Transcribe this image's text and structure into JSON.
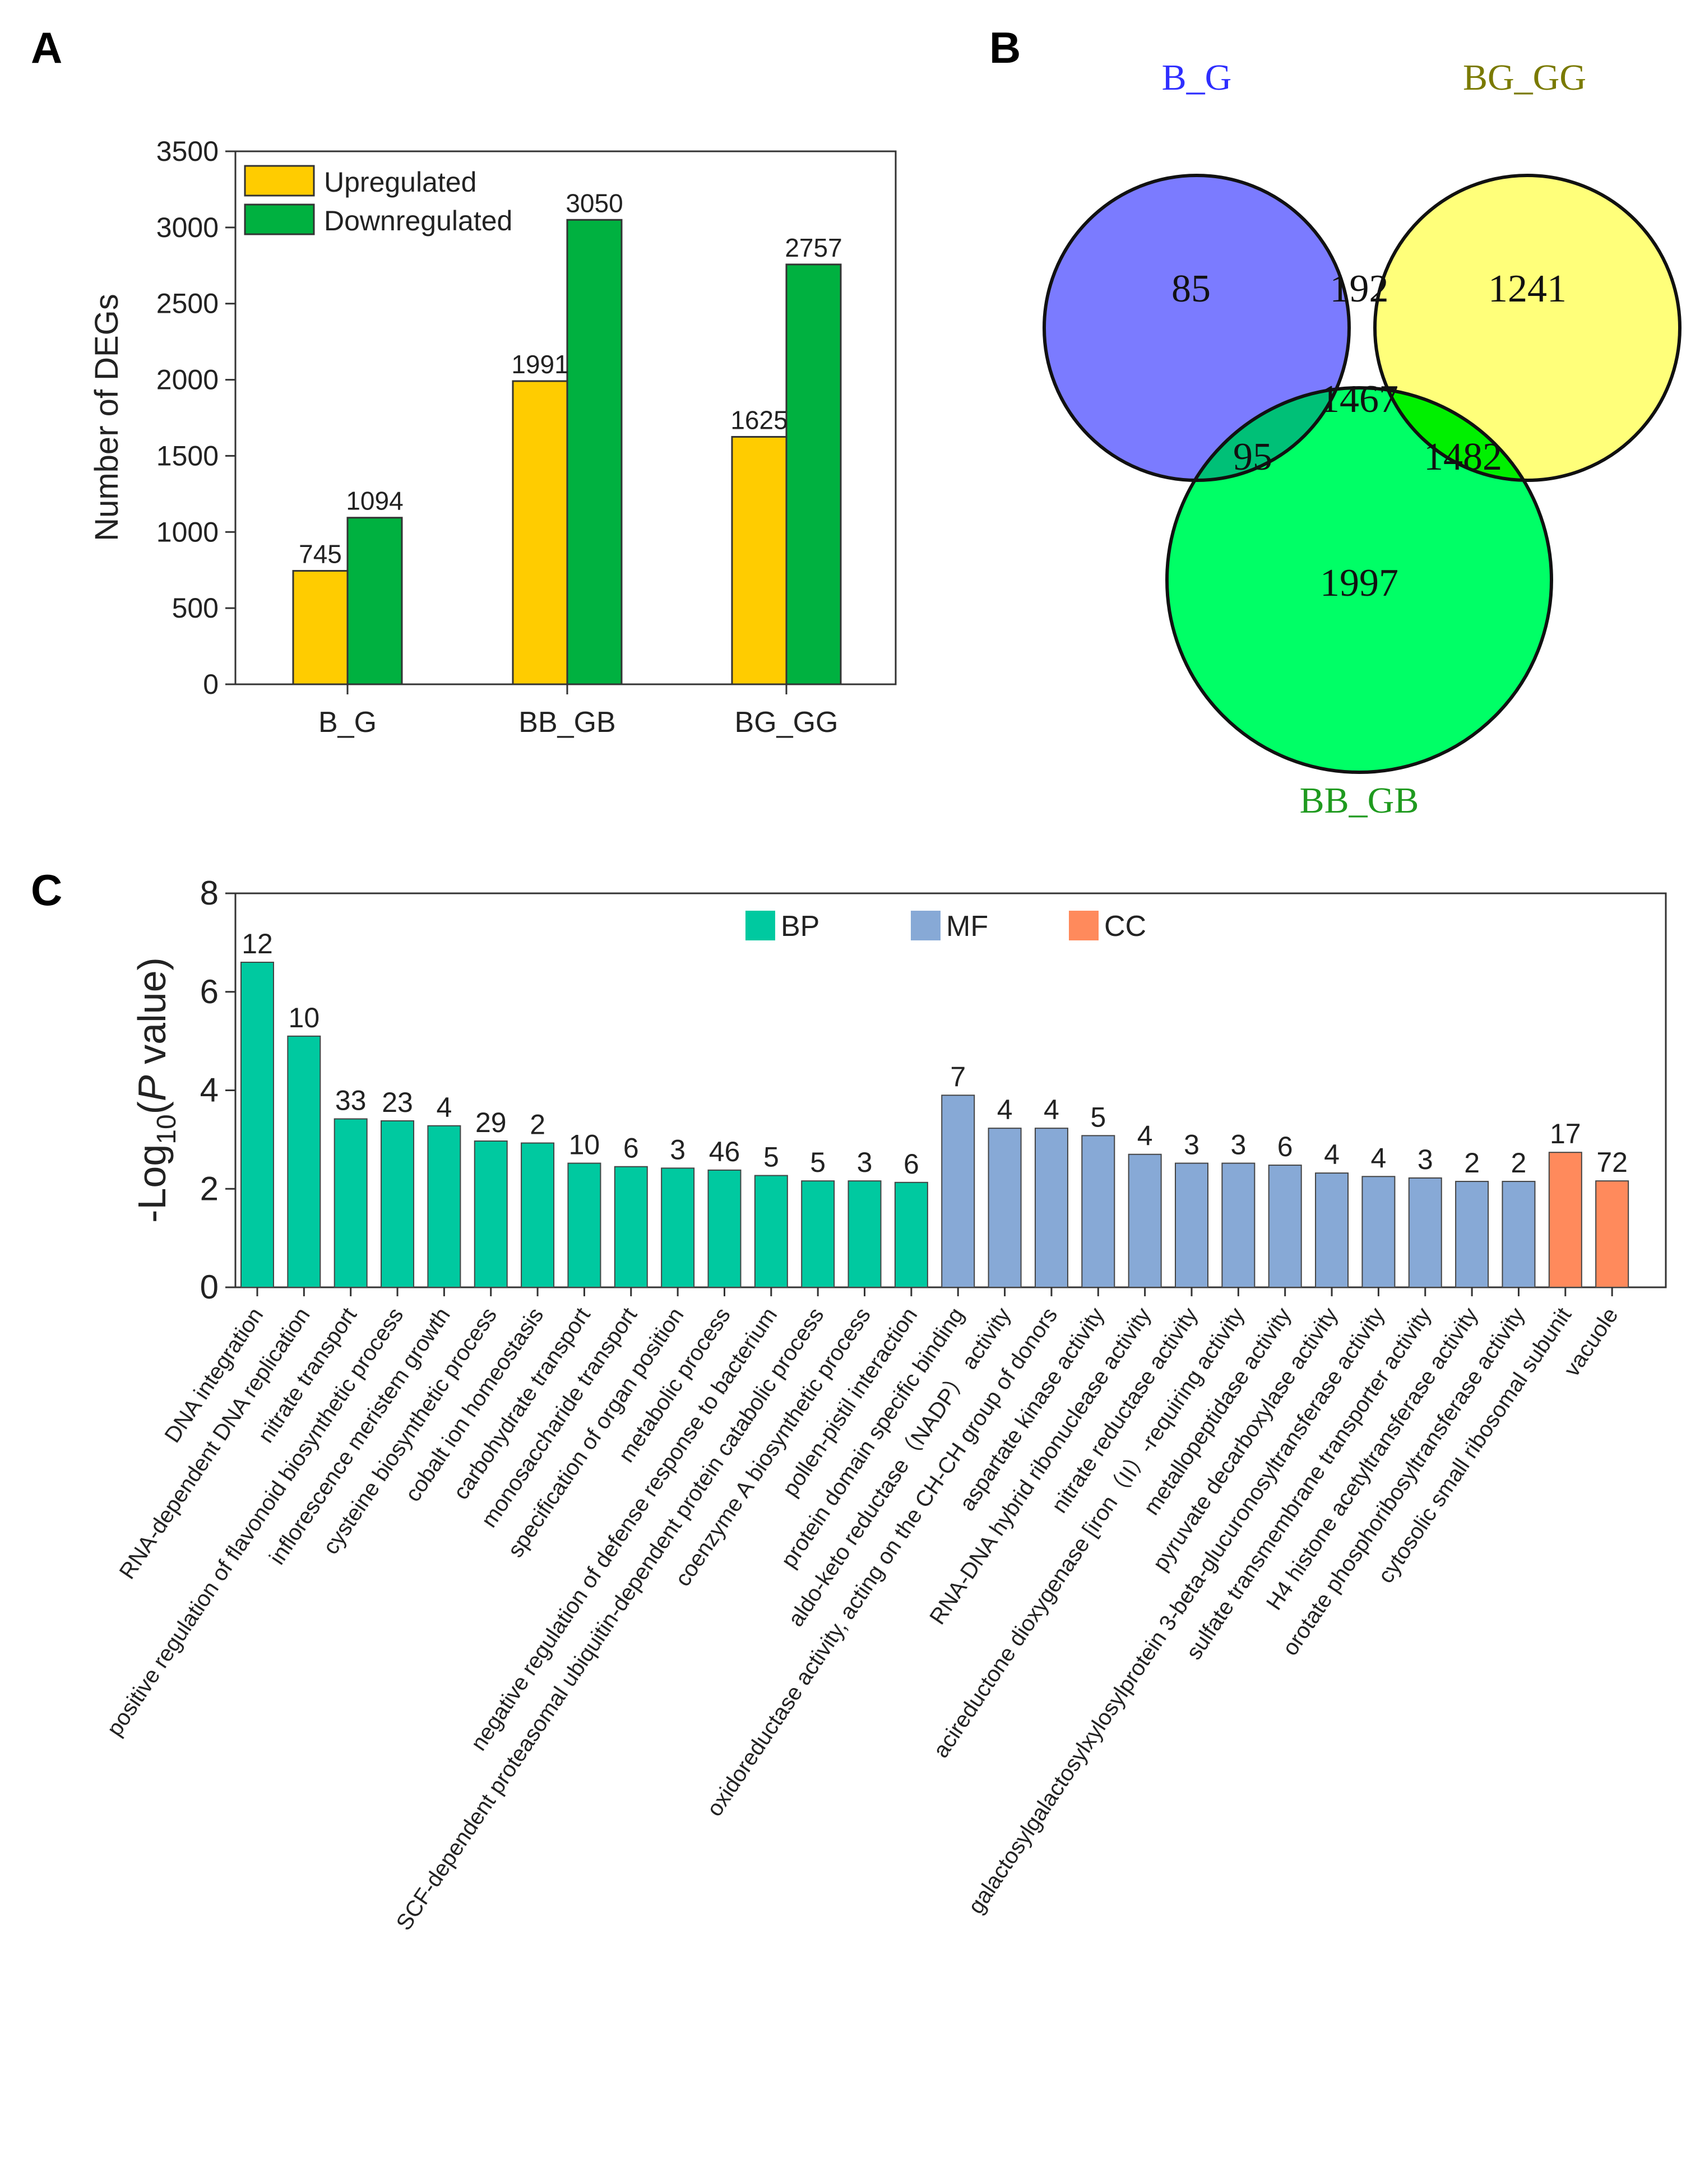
{
  "panels": {
    "a": "A",
    "b": "B",
    "c": "C"
  },
  "chart_data": [
    {
      "type": "bar",
      "panel": "A",
      "categories": [
        "B_G",
        "BB_GB",
        "BG_GG"
      ],
      "series": [
        {
          "name": "Upregulated",
          "color": "#ffcc00",
          "values": [
            745,
            1991,
            1625
          ]
        },
        {
          "name": "Downregulated",
          "color": "#00b140",
          "values": [
            1094,
            3050,
            2757
          ]
        }
      ],
      "value_labels": [
        [
          "745",
          "1991",
          "1625"
        ],
        [
          "1094",
          "3050",
          "2757"
        ]
      ],
      "ylabel": "Number of DEGs",
      "ylim": [
        0,
        3500
      ],
      "yticks": [
        0,
        500,
        1000,
        1500,
        2000,
        2500,
        3000,
        3500
      ],
      "legend": "top-left"
    },
    {
      "type": "venn",
      "panel": "B",
      "sets": [
        {
          "name": "B_G",
          "color": "#7b7bff",
          "label_color": "#2e2eff"
        },
        {
          "name": "BG_GG",
          "color": "#ffff7a",
          "label_color": "#7a7a00"
        },
        {
          "name": "BB_GB",
          "color": "#00ff66",
          "label_color": "#1f9a1f"
        }
      ],
      "regions": {
        "only_BG": "85",
        "only_BGGG": "1241",
        "only_BBGB": "1997",
        "BG_and_BGGG": "192",
        "BG_and_BBGB": "95",
        "BGGG_and_BBGB": "1482",
        "all_three": "1467"
      },
      "region_colors": {
        "BG_and_BGGG": "#bfbf80",
        "BG_and_BBGB": "#00c077",
        "BGGG_and_BBGB": "#00f000",
        "all_three": "#22cc22"
      }
    },
    {
      "type": "bar",
      "panel": "C",
      "ylabel_prefix": "-Log",
      "ylabel_sub": "10",
      "ylabel_open": "(",
      "ylabel_italic": "P",
      "ylabel_rest": " value)",
      "ylim": [
        0,
        8
      ],
      "yticks": [
        0,
        2,
        4,
        6,
        8
      ],
      "legend": [
        {
          "name": "BP",
          "color": "#00c9a0"
        },
        {
          "name": "MF",
          "color": "#87a9d6"
        },
        {
          "name": "CC",
          "color": "#ff8a5c"
        }
      ],
      "bars": [
        {
          "term": "DNA integration",
          "category": "BP",
          "value": 6.6,
          "count": "12"
        },
        {
          "term": "RNA-dependent DNA replication",
          "category": "BP",
          "value": 5.1,
          "count": "10"
        },
        {
          "term": "nitrate transport",
          "category": "BP",
          "value": 3.42,
          "count": "33"
        },
        {
          "term": "positive regulation of flavonoid biosynthetic process",
          "category": "BP",
          "value": 3.38,
          "count": "23"
        },
        {
          "term": "inflorescence meristem growth",
          "category": "BP",
          "value": 3.28,
          "count": "4"
        },
        {
          "term": "cysteine biosynthetic process",
          "category": "BP",
          "value": 2.97,
          "count": "29"
        },
        {
          "term": "cobalt ion homeostasis",
          "category": "BP",
          "value": 2.93,
          "count": "2"
        },
        {
          "term": "carbohydrate transport",
          "category": "BP",
          "value": 2.52,
          "count": "10"
        },
        {
          "term": "monosaccharide transport",
          "category": "BP",
          "value": 2.45,
          "count": "6"
        },
        {
          "term": "specification of organ position",
          "category": "BP",
          "value": 2.42,
          "count": "3"
        },
        {
          "term": "metabolic process",
          "category": "BP",
          "value": 2.38,
          "count": "46"
        },
        {
          "term": "negative regulation of defense response to bacterium",
          "category": "BP",
          "value": 2.27,
          "count": "5"
        },
        {
          "term": "SCF-dependent proteasomal ubiquitin-dependent protein catabolic process",
          "category": "BP",
          "value": 2.16,
          "count": "5"
        },
        {
          "term": "coenzyme A biosynthetic process",
          "category": "BP",
          "value": 2.16,
          "count": "3"
        },
        {
          "term": "pollen-pistil interaction",
          "category": "BP",
          "value": 2.13,
          "count": "6"
        },
        {
          "term": "protein domain specific binding",
          "category": "MF",
          "value": 3.9,
          "count": "7"
        },
        {
          "term": "aldo-keto reductase（NADP） activity",
          "category": "MF",
          "value": 3.23,
          "count": "4"
        },
        {
          "term": "oxidoreductase activity, acting on the CH-CH group of donors",
          "category": "MF",
          "value": 3.23,
          "count": "4"
        },
        {
          "term": "aspartate kinase activity",
          "category": "MF",
          "value": 3.08,
          "count": "5"
        },
        {
          "term": "RNA-DNA hybrid ribonuclease activity",
          "category": "MF",
          "value": 2.7,
          "count": "4"
        },
        {
          "term": "nitrate reductase activity",
          "category": "MF",
          "value": 2.52,
          "count": "3"
        },
        {
          "term": "acireductone dioxygenase [iron（II）-requiring activity",
          "category": "MF",
          "value": 2.52,
          "count": "3"
        },
        {
          "term": "metallopeptidase activity",
          "category": "MF",
          "value": 2.48,
          "count": "6"
        },
        {
          "term": "pyruvate decarboxylase activity",
          "category": "MF",
          "value": 2.32,
          "count": "4"
        },
        {
          "term": "galactosylgalactosylxylosylprotein 3-beta-glucuronosyltransferase activity",
          "category": "MF",
          "value": 2.25,
          "count": "4"
        },
        {
          "term": "sulfate transmembrane transporter activity",
          "category": "MF",
          "value": 2.22,
          "count": "3"
        },
        {
          "term": "H4 histone acetyltransferase activity",
          "category": "MF",
          "value": 2.15,
          "count": "2"
        },
        {
          "term": "orotate phosphoribosyltransferase activity",
          "category": "MF",
          "value": 2.15,
          "count": "2"
        },
        {
          "term": "cytosolic small ribosomal subunit",
          "category": "CC",
          "value": 2.74,
          "count": "17"
        },
        {
          "term": "vacuole",
          "category": "CC",
          "value": 2.16,
          "count": "72"
        }
      ]
    }
  ]
}
